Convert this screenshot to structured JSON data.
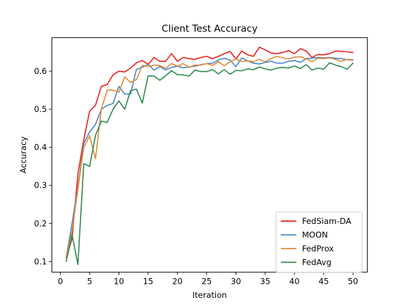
{
  "chart_data": {
    "type": "line",
    "title": "Client Test Accuracy",
    "xlabel": "Iteration",
    "ylabel": "Accuracy",
    "xlim": [
      -1.45,
      52.45
    ],
    "ylim": [
      0.072,
      0.688
    ],
    "x_ticks": [
      0,
      5,
      10,
      15,
      20,
      25,
      30,
      35,
      40,
      45,
      50
    ],
    "y_ticks": [
      0.1,
      0.2,
      0.3,
      0.4,
      0.5,
      0.6
    ],
    "y_tick_labels": [
      "0.1",
      "0.2",
      "0.3",
      "0.4",
      "0.5",
      "0.6"
    ],
    "grid": false,
    "legend_position": "lower-right",
    "x": [
      1,
      2,
      3,
      4,
      5,
      6,
      7,
      8,
      9,
      10,
      11,
      12,
      13,
      14,
      15,
      16,
      17,
      18,
      19,
      20,
      21,
      22,
      23,
      24,
      25,
      26,
      27,
      28,
      29,
      30,
      31,
      32,
      33,
      34,
      35,
      36,
      37,
      38,
      39,
      40,
      41,
      42,
      43,
      44,
      45,
      46,
      47,
      48,
      49,
      50
    ],
    "series": [
      {
        "name": "FedSiam-DA",
        "color": "#e8211f",
        "values": [
          0.11,
          0.16,
          0.33,
          0.42,
          0.495,
          0.51,
          0.56,
          0.565,
          0.59,
          0.6,
          0.598,
          0.608,
          0.622,
          0.628,
          0.618,
          0.636,
          0.626,
          0.626,
          0.646,
          0.626,
          0.636,
          0.633,
          0.631,
          0.636,
          0.639,
          0.633,
          0.639,
          0.646,
          0.652,
          0.632,
          0.653,
          0.643,
          0.639,
          0.663,
          0.656,
          0.648,
          0.646,
          0.649,
          0.654,
          0.646,
          0.659,
          0.653,
          0.636,
          0.644,
          0.643,
          0.646,
          0.653,
          0.652,
          0.651,
          0.649
        ]
      },
      {
        "name": "MOON",
        "color": "#4a86c0",
        "values": [
          0.11,
          0.2,
          0.295,
          0.41,
          0.44,
          0.46,
          0.5,
          0.51,
          0.515,
          0.56,
          0.54,
          0.54,
          0.605,
          0.61,
          0.618,
          0.603,
          0.612,
          0.603,
          0.61,
          0.613,
          0.609,
          0.611,
          0.613,
          0.617,
          0.62,
          0.621,
          0.629,
          0.634,
          0.629,
          0.612,
          0.635,
          0.627,
          0.621,
          0.619,
          0.623,
          0.626,
          0.621,
          0.621,
          0.626,
          0.628,
          0.623,
          0.633,
          0.634,
          0.636,
          0.635,
          0.636,
          0.634,
          0.633,
          0.63,
          0.629
        ]
      },
      {
        "name": "FedProx",
        "color": "#e08a37",
        "values": [
          0.11,
          0.18,
          0.29,
          0.4,
          0.43,
          0.37,
          0.5,
          0.55,
          0.55,
          0.545,
          0.585,
          0.57,
          0.578,
          0.615,
          0.612,
          0.616,
          0.615,
          0.607,
          0.62,
          0.613,
          0.62,
          0.61,
          0.616,
          0.616,
          0.62,
          0.615,
          0.625,
          0.614,
          0.625,
          0.632,
          0.625,
          0.627,
          0.625,
          0.631,
          0.625,
          0.633,
          0.639,
          0.635,
          0.632,
          0.637,
          0.638,
          0.632,
          0.625,
          0.634,
          0.633,
          0.635,
          0.631,
          0.626,
          0.631,
          0.63
        ]
      },
      {
        "name": "FedAvg",
        "color": "#2f8a4e",
        "values": [
          0.1,
          0.17,
          0.092,
          0.357,
          0.35,
          0.431,
          0.469,
          0.465,
          0.5,
          0.522,
          0.5,
          0.549,
          0.553,
          0.516,
          0.588,
          0.587,
          0.576,
          0.588,
          0.601,
          0.591,
          0.59,
          0.587,
          0.603,
          0.599,
          0.599,
          0.604,
          0.593,
          0.604,
          0.592,
          0.602,
          0.601,
          0.606,
          0.604,
          0.611,
          0.606,
          0.603,
          0.608,
          0.61,
          0.608,
          0.614,
          0.607,
          0.617,
          0.603,
          0.608,
          0.605,
          0.622,
          0.616,
          0.612,
          0.605,
          0.621
        ]
      }
    ]
  }
}
